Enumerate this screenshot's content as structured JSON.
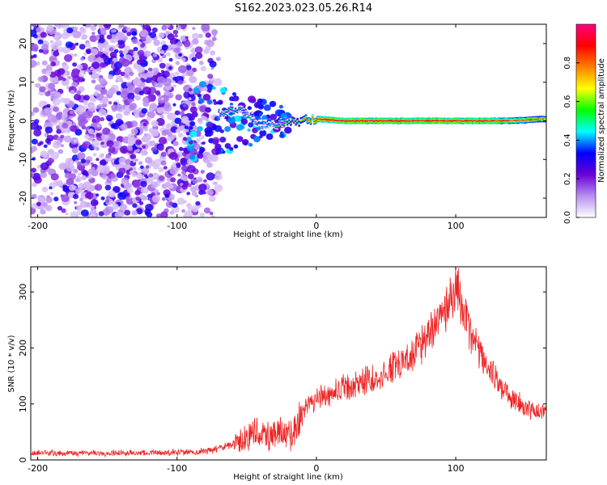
{
  "title": "S162.2023.023.05.26.R14",
  "chart_data": [
    {
      "type": "heatmap",
      "xlabel": "Height of straight line (km)",
      "ylabel": "Frequency (Hz)",
      "xlim": [
        -205,
        165
      ],
      "ylim": [
        -25,
        25
      ],
      "xticks": [
        -200,
        -100,
        0,
        100
      ],
      "yticks": [
        -20,
        -10,
        0,
        10,
        20
      ],
      "colorbar": {
        "label": "Normalized spectral amplitude",
        "range": [
          0.0,
          1.0
        ],
        "ticks": [
          0.0,
          0.2,
          0.4,
          0.6,
          0.8
        ],
        "colors": [
          "#ffffff",
          "#b98ef0",
          "#6a00d6",
          "#0000ff",
          "#00ffff",
          "#00ff00",
          "#ffff00",
          "#ff8000",
          "#ff0000",
          "#ff0080"
        ]
      },
      "signal_ridge": [
        {
          "x": -70,
          "f": 2,
          "amp": 0.45
        },
        {
          "x": -60,
          "f": 3,
          "amp": 0.5
        },
        {
          "x": -50,
          "f": 2,
          "amp": 0.45
        },
        {
          "x": -40,
          "f": -1,
          "amp": 0.4
        },
        {
          "x": -30,
          "f": -1,
          "amp": 0.45
        },
        {
          "x": -20,
          "f": 0,
          "amp": 0.55
        },
        {
          "x": -10,
          "f": 0,
          "amp": 0.7
        },
        {
          "x": 0,
          "f": 0.5,
          "amp": 0.9
        },
        {
          "x": 20,
          "f": 0,
          "amp": 0.9
        },
        {
          "x": 60,
          "f": 0,
          "amp": 0.9
        },
        {
          "x": 100,
          "f": 0,
          "amp": 0.9
        },
        {
          "x": 140,
          "f": 0,
          "amp": 0.85
        },
        {
          "x": 165,
          "f": 0.5,
          "amp": 0.75
        }
      ]
    },
    {
      "type": "line",
      "xlabel": "Height of straight line (km)",
      "ylabel": "SNR (10 * v/v)",
      "xlim": [
        -205,
        165
      ],
      "ylim": [
        0,
        345
      ],
      "xticks": [
        -200,
        -100,
        0,
        100
      ],
      "yticks": [
        0,
        100,
        200,
        300
      ],
      "series": [
        {
          "color": "#ee2222",
          "x": [
            -205,
            -180,
            -150,
            -120,
            -100,
            -85,
            -75,
            -65,
            -55,
            -45,
            -40,
            -35,
            -30,
            -25,
            -20,
            -15,
            -10,
            0,
            20,
            40,
            60,
            75,
            85,
            95,
            100,
            105,
            110,
            120,
            130,
            140,
            150,
            160,
            165
          ],
          "y": [
            12,
            12,
            12,
            13,
            13,
            14,
            18,
            25,
            35,
            45,
            50,
            45,
            48,
            55,
            40,
            60,
            85,
            110,
            130,
            145,
            170,
            200,
            245,
            275,
            300,
            270,
            230,
            180,
            140,
            110,
            95,
            85,
            85
          ]
        }
      ]
    }
  ]
}
